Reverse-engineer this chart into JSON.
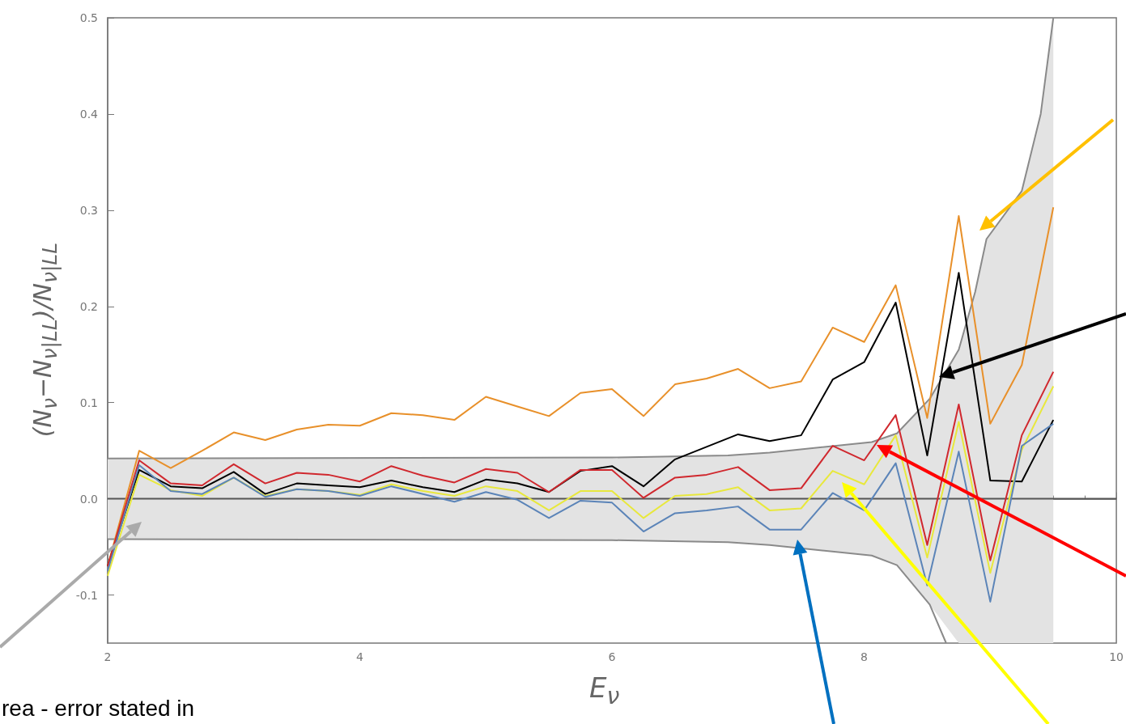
{
  "chart_data": {
    "type": "line",
    "xlabel": "E$_{ν}$",
    "ylabel": "(N$_{ν}$−N$_{ν|LL}$)/N$_{ν|LL}$",
    "annotations": [
      "rea - error stated in"
    ],
    "x": [
      2,
      2.25,
      2.5,
      2.75,
      3,
      3.25,
      3.5,
      3.75,
      4,
      4.25,
      4.5,
      4.75,
      5,
      5.25,
      5.5,
      5.75,
      6,
      6.25,
      6.5,
      6.75,
      7,
      7.25,
      7.5,
      7.75,
      8,
      8.25,
      8.5,
      8.75,
      9,
      9.25,
      9.5
    ],
    "xlim": [
      2,
      10
    ],
    "xticks": [
      2,
      4,
      6,
      8,
      10
    ],
    "ylim": [
      -0.15,
      0.5
    ],
    "yticks": [
      -0.1,
      {
        "value": 0,
        "label": "0.0"
      },
      0.1,
      0.2,
      0.3,
      0.4,
      0.5
    ],
    "series": [
      {
        "color": "#555555",
        "x": [
          2,
          6,
          6.92,
          7.25,
          8.06,
          8.26,
          8.52,
          8.75,
          8.88,
          8.97,
          9.25,
          9.4,
          9.5,
          10
        ],
        "values": [
          0,
          0,
          0,
          0,
          0,
          0,
          0,
          0,
          0,
          0,
          0,
          0,
          0,
          0
        ],
        "upper": [
          0.042,
          0.043,
          0.045,
          0.048,
          0.059,
          0.068,
          0.104,
          0.155,
          0.215,
          0.27,
          0.32,
          0.4,
          0.5,
          null
        ],
        "lower": [
          -0.042,
          -0.043,
          -0.045,
          -0.048,
          -0.059,
          -0.069,
          -0.11,
          -0.15,
          -0.15,
          -0.15,
          -0.15,
          -0.15,
          -0.15,
          null
        ]
      },
      {
        "color": "#8a8a8a",
        "x": [
          2,
          6,
          6.92,
          7.25,
          8.06,
          8.26,
          8.52,
          8.75,
          8.88,
          8.97,
          9.25,
          9.4,
          9.5
        ],
        "values": [
          0.042,
          0.043,
          0.045,
          0.048,
          0.059,
          0.068,
          0.104,
          0.155,
          0.215,
          0.27,
          0.32,
          0.4,
          0.5
        ]
      },
      {
        "color": "#8a8a8a",
        "x": [
          2,
          6,
          6.92,
          7.25,
          8.06,
          8.26,
          8.52,
          8.65
        ],
        "values": [
          -0.042,
          -0.043,
          -0.045,
          -0.048,
          -0.059,
          -0.069,
          -0.11,
          -0.15
        ]
      },
      {
        "color": "#e8902a",
        "values": [
          -0.07,
          0.05,
          0.032,
          0.05,
          0.069,
          0.061,
          0.072,
          0.077,
          0.076,
          0.089,
          0.087,
          0.082,
          0.106,
          0.096,
          0.086,
          0.11,
          0.114,
          0.086,
          0.119,
          0.125,
          0.135,
          0.115,
          0.122,
          0.178,
          0.163,
          0.222,
          0.084,
          0.294,
          0.078,
          0.139,
          0.303
        ]
      },
      {
        "color": "#000000",
        "values": [
          -0.07,
          0.03,
          0.013,
          0.011,
          0.028,
          0.005,
          0.016,
          0.014,
          0.012,
          0.019,
          0.012,
          0.007,
          0.02,
          0.016,
          0.007,
          0.029,
          0.034,
          0.013,
          0.041,
          0.054,
          0.067,
          0.06,
          0.066,
          0.124,
          0.142,
          0.204,
          0.045,
          0.235,
          0.019,
          0.018,
          0.082
        ]
      },
      {
        "color": "#d0282e",
        "values": [
          -0.07,
          0.04,
          0.016,
          0.014,
          0.036,
          0.016,
          0.027,
          0.025,
          0.018,
          0.034,
          0.024,
          0.017,
          0.031,
          0.027,
          0.007,
          0.03,
          0.03,
          0.001,
          0.022,
          0.025,
          0.033,
          0.009,
          0.011,
          0.055,
          0.04,
          0.087,
          -0.048,
          0.098,
          -0.064,
          0.066,
          0.132
        ]
      },
      {
        "color": "#e8e83c",
        "values": [
          -0.08,
          0.025,
          0.009,
          0.003,
          0.022,
          0.003,
          0.01,
          0.008,
          0.004,
          0.015,
          0.008,
          0.003,
          0.013,
          0.008,
          -0.012,
          0.008,
          0.008,
          -0.02,
          0.003,
          0.005,
          0.012,
          -0.012,
          -0.01,
          0.029,
          0.015,
          0.066,
          -0.061,
          0.08,
          -0.077,
          0.051,
          0.117
        ]
      },
      {
        "color": "#5b84b8",
        "values": [
          -0.075,
          0.035,
          0.008,
          0.005,
          0.022,
          0.002,
          0.01,
          0.008,
          0.003,
          0.013,
          0.005,
          -0.003,
          0.007,
          -0.001,
          -0.02,
          -0.002,
          -0.004,
          -0.034,
          -0.015,
          -0.012,
          -0.008,
          -0.032,
          -0.032,
          0.006,
          -0.012,
          0.037,
          -0.09,
          0.049,
          -0.107,
          0.055,
          0.078
        ]
      }
    ]
  }
}
